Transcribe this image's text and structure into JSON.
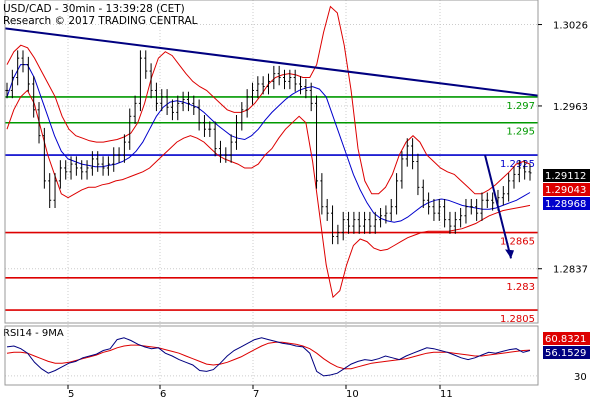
{
  "header": {
    "line1": "USD/CAD - 30min - 13:39:28 (CET)",
    "line2": "Research © 2017 TRADING CENTRAL"
  },
  "chart_data": [
    {
      "type": "line",
      "subtype": "candlestick-with-bollinger-bands",
      "title": "USD/CAD - 30min - 13:39:28 (CET)",
      "subtitle": "Research © 2017 TRADING CENTRAL",
      "x_ticks": [
        "5",
        "6",
        "7",
        "10",
        "11"
      ],
      "y_ticks": [
        1.3026,
        1.2963,
        1.2837
      ],
      "ylim": [
        1.2795,
        1.3045
      ],
      "grid": true,
      "legend": "none",
      "price_series": {
        "name": "",
        "values": [
          1.2975,
          1.2985,
          1.3,
          1.2995,
          1.298,
          1.296,
          1.294,
          1.2905,
          1.289,
          1.2905,
          1.2915,
          1.2912,
          1.2918,
          1.2915,
          1.2912,
          1.2915,
          1.2922,
          1.2918,
          1.2915,
          1.2918,
          1.2925,
          1.2925,
          1.2935,
          1.2955,
          1.2965,
          1.3,
          1.299,
          1.2975,
          1.2965,
          1.297,
          1.2962,
          1.2958,
          1.2965,
          1.2968,
          1.2965,
          1.2962,
          1.295,
          1.2945,
          1.2945,
          1.293,
          1.2925,
          1.2925,
          1.2935,
          1.295,
          1.296,
          1.297,
          1.2975,
          1.298,
          1.2978,
          1.2982,
          1.2988,
          1.2985,
          1.2982,
          1.2985,
          1.298,
          1.2978,
          1.2975,
          1.2965,
          1.2905,
          1.2885,
          1.288,
          1.2862,
          1.2865,
          1.2875,
          1.287,
          1.2875,
          1.287,
          1.2875,
          1.287,
          1.2875,
          1.2878,
          1.288,
          1.2885,
          1.2905,
          1.2922,
          1.2932,
          1.292,
          1.29,
          1.289,
          1.2885,
          1.288,
          1.2885,
          1.2875,
          1.287,
          1.2875,
          1.2878,
          1.2885,
          1.2885,
          1.288,
          1.289,
          1.289,
          1.2888,
          1.2892,
          1.2895,
          1.2905,
          1.291,
          1.2915,
          1.2912,
          1.29112
        ]
      },
      "moving_average": {
        "name": "",
        "values": [
          1.297,
          1.2985,
          1.2995,
          1.2995,
          1.2985,
          1.297,
          1.2955,
          1.294,
          1.2928,
          1.2922,
          1.292,
          1.2918,
          1.2917,
          1.2916,
          1.2916,
          1.2917,
          1.2918,
          1.292,
          1.2923,
          1.2928,
          1.2935,
          1.2945,
          1.2955,
          1.2962,
          1.2966,
          1.2967,
          1.2966,
          1.2964,
          1.2962,
          1.2958,
          1.2953,
          1.2948,
          1.2944,
          1.294,
          1.2938,
          1.2937,
          1.294,
          1.2945,
          1.2952,
          1.2958,
          1.2963,
          1.2968,
          1.2972,
          1.2975,
          1.2977,
          1.2978,
          1.2976,
          1.297,
          1.2955,
          1.294,
          1.2925,
          1.291,
          1.2898,
          1.2888,
          1.288,
          1.2876,
          1.2874,
          1.2873,
          1.2874,
          1.2877,
          1.2881,
          1.2885,
          1.2888,
          1.289,
          1.2891,
          1.289,
          1.2888,
          1.2886,
          1.2885,
          1.2884,
          1.2883,
          1.2883,
          1.2884,
          1.2886,
          1.2888,
          1.289,
          1.2893,
          1.2896
        ]
      },
      "bollinger_upper": {
        "name": "",
        "values": [
          1.2995,
          1.3005,
          1.301,
          1.3008,
          1.3,
          1.299,
          1.298,
          1.297,
          1.2955,
          1.2945,
          1.294,
          1.2938,
          1.2936,
          1.2935,
          1.2935,
          1.2936,
          1.2937,
          1.2939,
          1.2942,
          1.295,
          1.2965,
          1.2985,
          1.3,
          1.3005,
          1.3002,
          1.2995,
          1.2988,
          1.2982,
          1.2978,
          1.2975,
          1.297,
          1.2965,
          1.296,
          1.2958,
          1.2958,
          1.296,
          1.2965,
          1.2972,
          1.298,
          1.2985,
          1.2987,
          1.2988,
          1.2987,
          1.2985,
          1.2985,
          1.2995,
          1.302,
          1.304,
          1.3035,
          1.301,
          1.2975,
          1.293,
          1.2905,
          1.2895,
          1.2895,
          1.29,
          1.291,
          1.2925,
          1.2935,
          1.294,
          1.2935,
          1.2925,
          1.292,
          1.2915,
          1.2912,
          1.291,
          1.2905,
          1.29,
          1.2895,
          1.2895,
          1.2898,
          1.2902,
          1.2907,
          1.2912,
          1.2918,
          1.292,
          1.2918
        ]
      },
      "bollinger_lower": {
        "name": "",
        "values": [
          1.2945,
          1.296,
          1.297,
          1.2975,
          1.2965,
          1.2945,
          1.2925,
          1.291,
          1.2895,
          1.2892,
          1.2895,
          1.2898,
          1.29,
          1.29,
          1.2902,
          1.2903,
          1.2905,
          1.2906,
          1.2908,
          1.291,
          1.2912,
          1.2915,
          1.292,
          1.2925,
          1.293,
          1.2935,
          1.2938,
          1.294,
          1.2938,
          1.2935,
          1.293,
          1.2925,
          1.2922,
          1.292,
          1.2918,
          1.2915,
          1.2915,
          1.2918,
          1.2925,
          1.293,
          1.2938,
          1.2945,
          1.295,
          1.2955,
          1.295,
          1.292,
          1.288,
          1.284,
          1.2815,
          1.282,
          1.284,
          1.2855,
          1.286,
          1.2858,
          1.2853,
          1.2851,
          1.2852,
          1.2855,
          1.2858,
          1.2861,
          1.2863,
          1.2865,
          1.2866,
          1.2866,
          1.2866,
          1.2866,
          1.2867,
          1.2868,
          1.287,
          1.2872,
          1.2875,
          1.2878,
          1.288,
          1.2882,
          1.2883,
          1.2884,
          1.2885,
          1.2886
        ]
      },
      "horizontal_levels": [
        {
          "value": 1.297,
          "label": "1.297",
          "color": "#009900"
        },
        {
          "value": 1.295,
          "label": "1.295",
          "color": "#009900"
        },
        {
          "value": 1.2925,
          "label": "1.2925",
          "color": "#0000cc"
        },
        {
          "value": 1.2865,
          "label": "1.2865",
          "color": "#dd0000"
        },
        {
          "value": 1.283,
          "label": "1.283",
          "color": "#dd0000"
        },
        {
          "value": 1.2805,
          "label": "1.2805",
          "color": "#dd0000"
        }
      ],
      "trendline": {
        "from": [
          0,
          1.3023
        ],
        "to": [
          1,
          1.2971
        ],
        "color": "#000080"
      },
      "projection_arrow": {
        "from": [
          1.2925
        ],
        "to": [
          1.2845
        ],
        "color": "#000080"
      },
      "price_tags": [
        {
          "label": "1.29112",
          "value": 1.29112,
          "bg": "#000000",
          "fg": "#ffffff"
        },
        {
          "label": "1.29043",
          "value": 1.29043,
          "bg": "#dd0000",
          "fg": "#ffffff"
        },
        {
          "label": "1.28968",
          "value": 1.28968,
          "bg": "#0000cc",
          "fg": "#ffffff"
        }
      ],
      "colors": {
        "price": "#000000",
        "ma": "#0000cc",
        "bands": "#dd0000"
      }
    },
    {
      "type": "line",
      "title": "RSI14 - 9MA",
      "y_ticks": [
        30
      ],
      "ylim": [
        20,
        85
      ],
      "rsi": {
        "name": "",
        "values": [
          62,
          63,
          60,
          55,
          45,
          38,
          33,
          36,
          40,
          44,
          46,
          50,
          52,
          54,
          58,
          60,
          70,
          72,
          69,
          65,
          62,
          60,
          61,
          55,
          52,
          48,
          45,
          42,
          36,
          35,
          37,
          44,
          52,
          58,
          62,
          66,
          70,
          72,
          70,
          68,
          66,
          65,
          63,
          62,
          55,
          35,
          30,
          31,
          33,
          38,
          43,
          46,
          48,
          47,
          49,
          52,
          50,
          48,
          52,
          55,
          58,
          61,
          60,
          58,
          56,
          53,
          50,
          48,
          50,
          53,
          56,
          55,
          57,
          59,
          60,
          56,
          58
        ]
      },
      "rsi_ma": {
        "name": "",
        "values": [
          55,
          56,
          56,
          55,
          52,
          49,
          46,
          44,
          44,
          45,
          47,
          49,
          51,
          53,
          56,
          58,
          61,
          63,
          64,
          64,
          63,
          62,
          61,
          59,
          57,
          55,
          52,
          49,
          46,
          43,
          42,
          43,
          45,
          48,
          51,
          55,
          59,
          63,
          66,
          67,
          67,
          66,
          65,
          63,
          60,
          55,
          49,
          44,
          40,
          38,
          38,
          40,
          42,
          44,
          45,
          46,
          47,
          48,
          49,
          51,
          53,
          55,
          56,
          56,
          56,
          55,
          54,
          53,
          52,
          52,
          53,
          54,
          55,
          56,
          57,
          58,
          58.5
        ]
      },
      "price_tags": [
        {
          "label": "60.8321",
          "value": 60.8321,
          "bg": "#dd0000",
          "fg": "#ffffff"
        },
        {
          "label": "56.1529",
          "value": 56.1529,
          "bg": "#000080",
          "fg": "#ffffff"
        }
      ],
      "colors": {
        "rsi": "#000080",
        "rsi_ma": "#dd0000"
      }
    }
  ]
}
